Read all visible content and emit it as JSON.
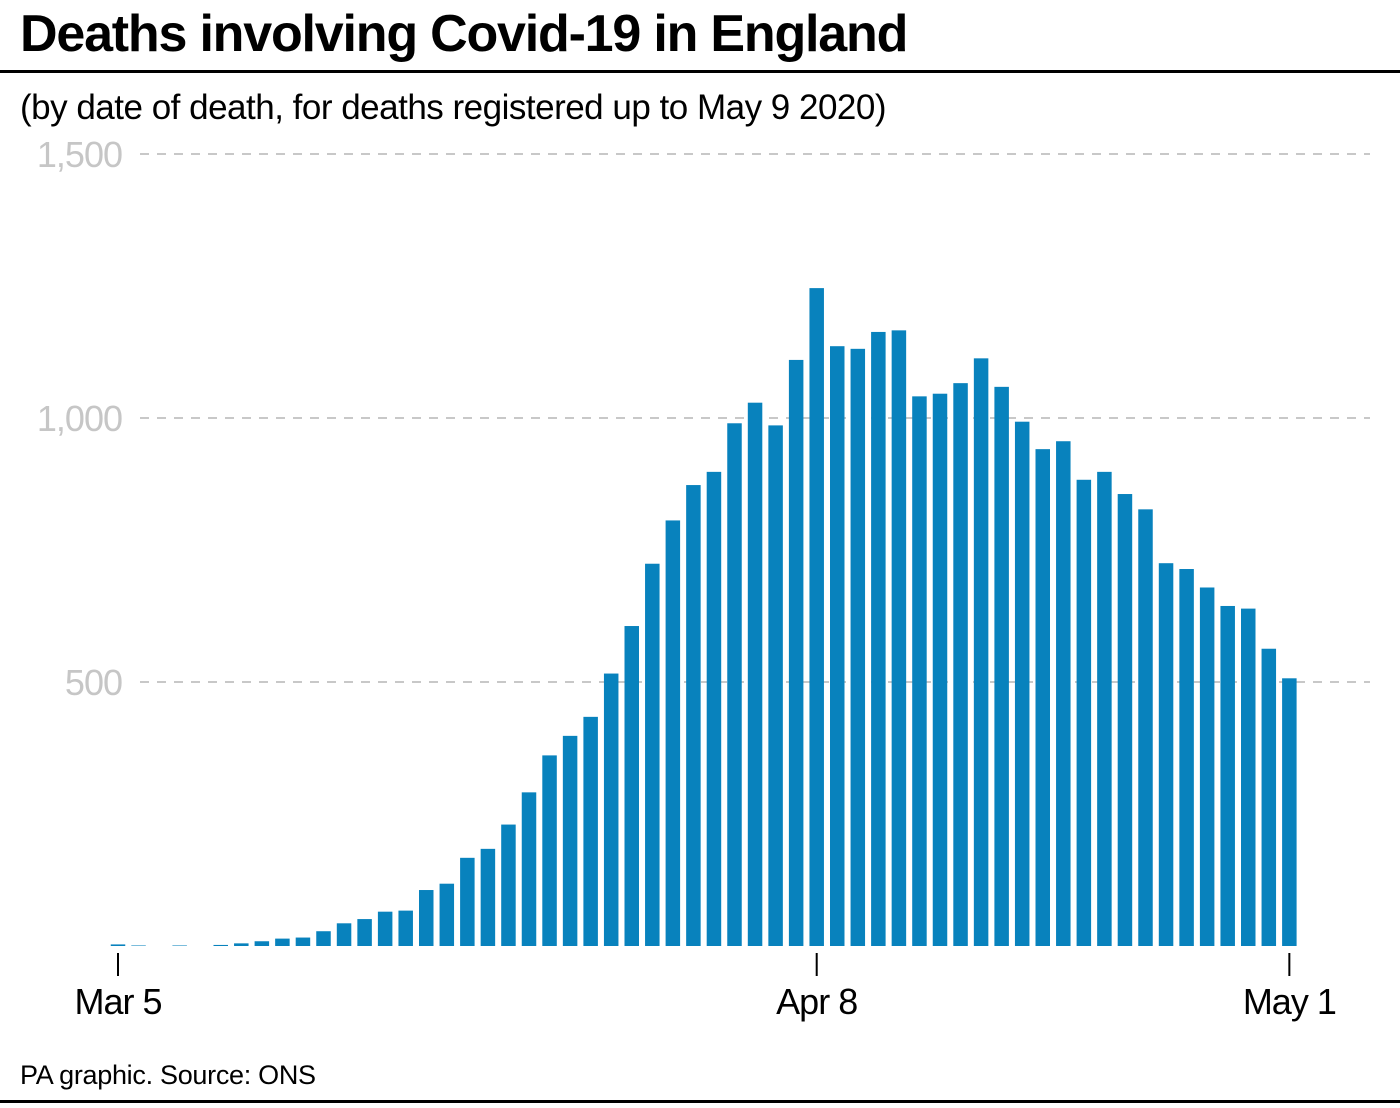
{
  "header": {
    "title": "Deaths involving Covid-19 in England",
    "subtitle": "(by date of death, for deaths registered up to May 9 2020)"
  },
  "footer": {
    "source": "PA graphic. Source: ONS"
  },
  "colors": {
    "bar": "#0882bd",
    "grid": "#c8c8c8",
    "ytick_text": "#c6c6c6",
    "rule": "#000000"
  },
  "chart_data": {
    "type": "bar",
    "x": [
      "2020-03-05",
      "2020-03-06",
      "2020-03-07",
      "2020-03-08",
      "2020-03-09",
      "2020-03-10",
      "2020-03-11",
      "2020-03-12",
      "2020-03-13",
      "2020-03-14",
      "2020-03-15",
      "2020-03-16",
      "2020-03-17",
      "2020-03-18",
      "2020-03-19",
      "2020-03-20",
      "2020-03-21",
      "2020-03-22",
      "2020-03-23",
      "2020-03-24",
      "2020-03-25",
      "2020-03-26",
      "2020-03-27",
      "2020-03-28",
      "2020-03-29",
      "2020-03-30",
      "2020-03-31",
      "2020-04-01",
      "2020-04-02",
      "2020-04-03",
      "2020-04-04",
      "2020-04-05",
      "2020-04-06",
      "2020-04-07",
      "2020-04-08",
      "2020-04-09",
      "2020-04-10",
      "2020-04-11",
      "2020-04-12",
      "2020-04-13",
      "2020-04-14",
      "2020-04-15",
      "2020-04-16",
      "2020-04-17",
      "2020-04-18",
      "2020-04-19",
      "2020-04-20",
      "2020-04-21",
      "2020-04-22",
      "2020-04-23",
      "2020-04-24",
      "2020-04-25",
      "2020-04-26",
      "2020-04-27",
      "2020-04-28",
      "2020-04-29",
      "2020-04-30",
      "2020-05-01"
    ],
    "values": [
      3,
      1,
      0,
      1,
      0,
      2,
      5,
      9,
      14,
      16,
      28,
      43,
      51,
      65,
      67,
      106,
      118,
      167,
      184,
      230,
      291,
      361,
      398,
      434,
      516,
      606,
      724,
      806,
      873,
      898,
      990,
      1029,
      986,
      1110,
      1246,
      1136,
      1131,
      1163,
      1166,
      1041,
      1046,
      1066,
      1113,
      1059,
      993,
      941,
      956,
      883,
      898,
      856,
      827,
      725,
      714,
      679,
      644,
      639,
      563,
      507
    ],
    "xtick_labels": [
      {
        "date": "2020-03-05",
        "label": "Mar 5"
      },
      {
        "date": "2020-04-08",
        "label": "Apr 8"
      },
      {
        "date": "2020-05-01",
        "label": "May 1"
      }
    ],
    "yticks": [
      500,
      1000,
      1500
    ],
    "ytick_labels": [
      "500",
      "1,000",
      "1,500"
    ],
    "ylim": [
      0,
      1500
    ],
    "grid": "horizontal dashed",
    "xlabel": "",
    "ylabel": ""
  }
}
